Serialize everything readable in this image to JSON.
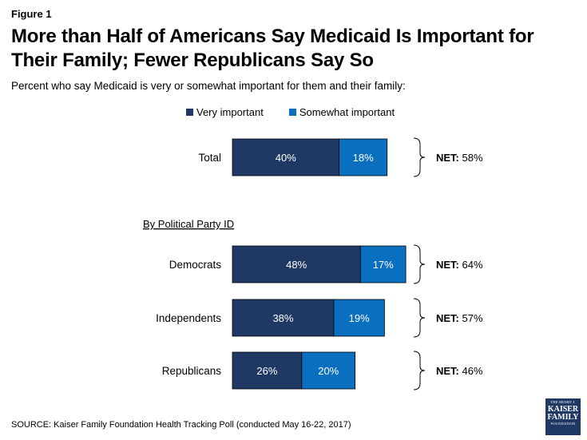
{
  "figure_label": "Figure 1",
  "title": "More than Half of Americans Say Medicaid Is Important for Their Family; Fewer Republicans Say So",
  "subtitle": "Percent who say Medicaid is very or somewhat important for them and their family:",
  "source": "SOURCE: Kaiser Family Foundation Health Tracking Poll (conducted May 16-22, 2017)",
  "logo": {
    "line1": "THE HENRY J.",
    "line2": "KAISER",
    "line3": "FAMILY",
    "line4": "FOUNDATION"
  },
  "colors": {
    "very": "#1f3864",
    "somewhat": "#0b6fc0",
    "bracket": "#000000"
  },
  "chart_data": {
    "type": "bar",
    "orientation": "horizontal",
    "stacked": true,
    "group_label": "By Political Party ID",
    "categories": [
      "Total",
      "Democrats",
      "Independents",
      "Republicans"
    ],
    "series": [
      {
        "name": "Very important",
        "values": [
          40,
          48,
          38,
          26
        ]
      },
      {
        "name": "Somewhat important",
        "values": [
          18,
          17,
          19,
          20
        ]
      }
    ],
    "net_label": "NET:",
    "net_values": [
      "58%",
      "64%",
      "57%",
      "46%"
    ],
    "unit": "%",
    "legend_position": "top",
    "grid": false
  }
}
